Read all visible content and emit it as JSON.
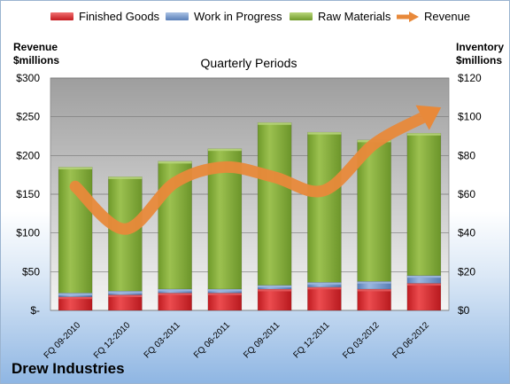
{
  "legend": {
    "finished_goods": "Finished Goods",
    "work_in_progress": "Work in Progress",
    "raw_materials": "Raw Materials",
    "revenue": "Revenue"
  },
  "left_axis_title": [
    "Revenue",
    "$millions"
  ],
  "right_axis_title": [
    "Inventory",
    "$millions"
  ],
  "company": "Drew Industries",
  "colors": {
    "finished_goods": "#d9252a",
    "work_in_progress": "#6f93c8",
    "raw_materials": "#86ad3f",
    "revenue": "#e8893a"
  },
  "chart_data": {
    "type": "bar",
    "title": "Quarterly Periods",
    "categories": [
      "FQ 09-2010",
      "FQ 12-2010",
      "FQ 03-2011",
      "FQ 06-2011",
      "FQ 09-2011",
      "FQ 12-2011",
      "FQ 03-2012",
      "FQ 06-2012"
    ],
    "stacked": true,
    "series": [
      {
        "name": "Finished Goods",
        "axis": "right",
        "values": [
          7,
          8,
          9,
          9,
          11,
          12,
          11,
          14
        ]
      },
      {
        "name": "Work in Progress",
        "axis": "right",
        "values": [
          2,
          2,
          2,
          2,
          2,
          2.5,
          4,
          4
        ]
      },
      {
        "name": "Raw Materials",
        "axis": "right",
        "values": [
          65,
          59,
          66,
          72.5,
          84,
          77.5,
          73,
          73.5
        ]
      },
      {
        "name": "Revenue",
        "axis": "left",
        "type": "line",
        "values": [
          160,
          105,
          165,
          185,
          172,
          155,
          215,
          250
        ]
      }
    ],
    "left_axis": {
      "ylim": [
        0,
        300
      ],
      "ticks": [
        "$-",
        "$50",
        "$100",
        "$150",
        "$200",
        "$250",
        "$300"
      ]
    },
    "right_axis": {
      "ylim": [
        0,
        120
      ],
      "ticks": [
        "$0",
        "$20",
        "$40",
        "$60",
        "$80",
        "$100",
        "$120"
      ]
    },
    "grid": true
  }
}
